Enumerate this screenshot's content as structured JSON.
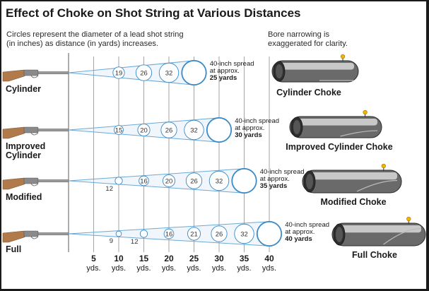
{
  "title": "Effect of Choke on Shot String at Various Distances",
  "note_left": [
    "Circles represent the diameter of a lead shot string",
    "(in inches) as distance (in yards) increases."
  ],
  "note_right": [
    "Bore narrowing is",
    "exaggerated for clarity."
  ],
  "distances": [
    5,
    10,
    15,
    20,
    25,
    30,
    35,
    40
  ],
  "distance_unit": "yds.",
  "spread_text": [
    "40-inch spread",
    "at approx."
  ],
  "colors": {
    "line": "#6aaad8",
    "circle": "#3a8ac8",
    "circle_fill": "#ffffff",
    "gridline": "#9a9a9a",
    "gun_stock": "#b07a4a",
    "choke_body": "#6a6a6a",
    "bead": "#f4b400"
  },
  "rows": [
    {
      "label": [
        "Cylinder"
      ],
      "choke": "Cylinder Choke",
      "spread_yards": "25 yards",
      "circles": [
        {
          "distance": 10,
          "diameter": 19
        },
        {
          "distance": 15,
          "diameter": 26
        },
        {
          "distance": 20,
          "diameter": 32
        },
        {
          "distance": 25,
          "diameter": 40
        }
      ]
    },
    {
      "label": [
        "Improved",
        "Cylinder"
      ],
      "choke": "Improved Cylinder Choke",
      "spread_yards": "30 yards",
      "circles": [
        {
          "distance": 10,
          "diameter": 15
        },
        {
          "distance": 15,
          "diameter": 20
        },
        {
          "distance": 20,
          "diameter": 26
        },
        {
          "distance": 25,
          "diameter": 32
        },
        {
          "distance": 30,
          "diameter": 40
        }
      ]
    },
    {
      "label": [
        "Modified"
      ],
      "choke": "Modified Choke",
      "spread_yards": "35 yards",
      "circles": [
        {
          "distance": 10,
          "diameter": 12
        },
        {
          "distance": 15,
          "diameter": 16
        },
        {
          "distance": 20,
          "diameter": 20
        },
        {
          "distance": 25,
          "diameter": 26
        },
        {
          "distance": 30,
          "diameter": 32
        },
        {
          "distance": 35,
          "diameter": 40
        }
      ]
    },
    {
      "label": [
        "Full"
      ],
      "choke": "Full Choke",
      "spread_yards": "40 yards",
      "circles": [
        {
          "distance": 10,
          "diameter": 9
        },
        {
          "distance": 15,
          "diameter": 12
        },
        {
          "distance": 20,
          "diameter": 16
        },
        {
          "distance": 25,
          "diameter": 21
        },
        {
          "distance": 30,
          "diameter": 26
        },
        {
          "distance": 35,
          "diameter": 32
        },
        {
          "distance": 40,
          "diameter": 40
        }
      ]
    }
  ]
}
